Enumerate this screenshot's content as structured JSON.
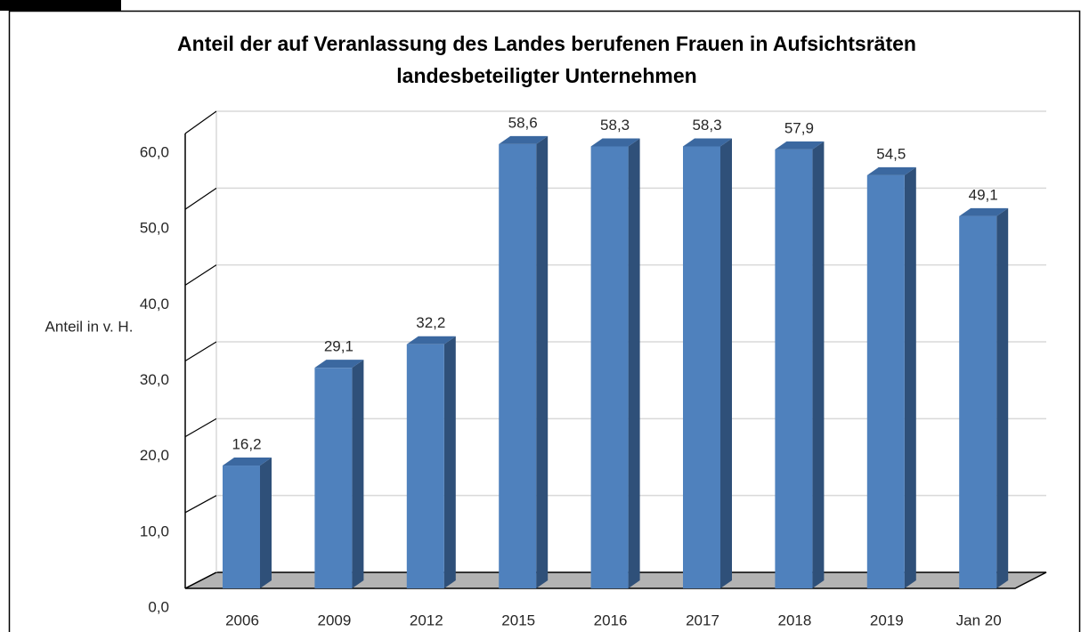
{
  "chart_data": {
    "type": "bar3d",
    "title": [
      "Anteil der auf Veranlassung des Landes berufenen Frauen in Aufsichtsräten",
      "landesbeteiligter Unternehmen"
    ],
    "y_label": "Anteil in v. H.",
    "categories": [
      "2006",
      "2009",
      "2012",
      "2015",
      "2016",
      "2017",
      "2018",
      "2019",
      "Jan 20"
    ],
    "values": [
      16.2,
      29.1,
      32.2,
      58.6,
      58.3,
      58.3,
      57.9,
      54.5,
      49.1
    ],
    "value_labels": [
      "16,2",
      "29,1",
      "32,2",
      "58,6",
      "58,3",
      "58,3",
      "57,9",
      "54,5",
      "49,1"
    ],
    "color": "#4f81bd",
    "ylim": [
      0,
      60
    ],
    "yticks": [
      {
        "value": 0,
        "label": "0,0"
      },
      {
        "value": 10,
        "label": "10,0"
      },
      {
        "value": 20,
        "label": "20,0"
      },
      {
        "value": 30,
        "label": "30,0"
      },
      {
        "value": 40,
        "label": "40,0"
      },
      {
        "value": 50,
        "label": "50,0"
      },
      {
        "value": 60,
        "label": "60,0"
      }
    ],
    "grid": true
  }
}
